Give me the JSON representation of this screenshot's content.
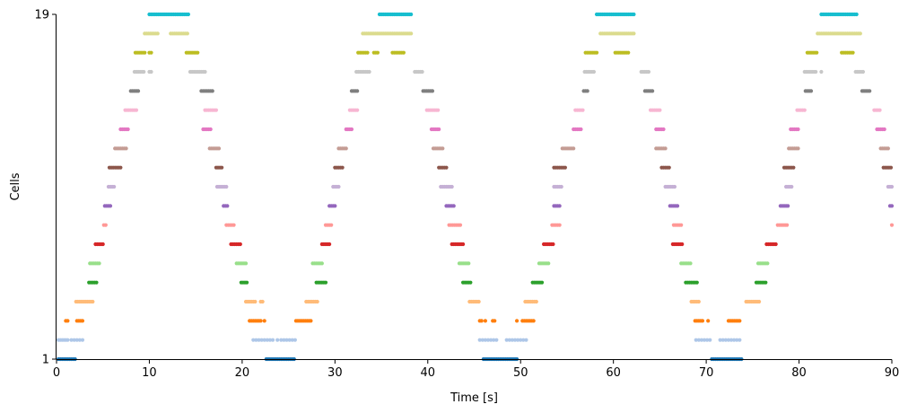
{
  "chart_data": {
    "type": "scatter",
    "title": "",
    "xlabel": "Time [s]",
    "ylabel": "Cells",
    "xlim": [
      0,
      90
    ],
    "ylim": [
      1,
      19
    ],
    "xticks": [
      "0",
      "10",
      "20",
      "30",
      "40",
      "50",
      "60",
      "70",
      "80",
      "90"
    ],
    "yticks": [
      "1",
      "19"
    ],
    "grid": false,
    "legend": "none",
    "cell_colors": [
      "#1f77b4",
      "#aec7e8",
      "#ff7f0e",
      "#ffbb78",
      "#2ca02c",
      "#98df8a",
      "#d62728",
      "#ff9896",
      "#9467bd",
      "#c5b0d5",
      "#8c564b",
      "#c49c94",
      "#e377c2",
      "#f7b6d2",
      "#7f7f7f",
      "#c7c7c7",
      "#bcbd22",
      "#dbdb8d",
      "#17becf"
    ],
    "firing_times_s": [
      [
        0.2,
        0.4,
        0.6,
        0.8,
        1.0,
        1.2,
        1.4,
        1.6,
        1.8,
        2.0,
        22.6,
        22.8,
        23.0,
        23.2,
        23.4,
        23.6,
        23.8,
        24.0,
        24.2,
        24.4,
        24.6,
        24.8,
        25.0,
        25.2,
        25.4,
        25.6,
        46.0,
        46.2,
        46.4,
        46.6,
        46.8,
        47.0,
        47.2,
        47.4,
        47.6,
        47.8,
        48.0,
        48.2,
        48.4,
        48.6,
        48.8,
        49.0,
        49.2,
        49.4,
        49.6,
        70.6,
        70.8,
        71.0,
        71.2,
        71.4,
        71.6,
        71.8,
        72.0,
        72.2,
        72.4,
        72.6,
        72.8,
        73.0,
        73.2,
        73.4,
        73.6,
        73.8
      ],
      [
        0.2,
        0.4,
        0.6,
        0.8,
        1.0,
        1.2,
        1.6,
        1.9,
        2.2,
        2.5,
        2.8,
        21.2,
        21.5,
        21.8,
        22.1,
        22.4,
        22.7,
        23.0,
        23.3,
        23.8,
        24.2,
        24.5,
        24.8,
        25.1,
        25.4,
        25.7,
        45.6,
        45.9,
        46.2,
        46.5,
        46.8,
        47.1,
        47.4,
        48.5,
        48.8,
        49.1,
        49.4,
        49.7,
        50.0,
        50.3,
        50.6,
        68.9,
        69.2,
        69.5,
        69.8,
        70.1,
        70.4,
        71.5,
        71.8,
        72.1,
        72.4,
        72.7,
        73.0,
        73.3,
        73.6
      ],
      [
        1.0,
        1.2,
        2.2,
        2.4,
        2.6,
        2.8,
        20.8,
        21.0,
        21.2,
        21.4,
        21.6,
        21.8,
        22.0,
        22.4,
        25.8,
        26.0,
        26.2,
        26.4,
        26.6,
        26.8,
        27.0,
        27.2,
        27.4,
        45.6,
        45.8,
        46.2,
        47.0,
        47.2,
        49.6,
        50.2,
        50.4,
        50.6,
        50.8,
        51.0,
        51.2,
        51.4,
        68.8,
        69.0,
        69.2,
        69.4,
        69.6,
        70.2,
        72.4,
        72.6,
        72.8,
        73.0,
        73.2,
        73.4,
        73.6
      ],
      [
        2.1,
        2.3,
        2.5,
        2.7,
        2.9,
        3.1,
        3.3,
        3.5,
        3.7,
        3.9,
        20.4,
        20.6,
        20.8,
        21.0,
        21.2,
        21.4,
        22.0,
        22.2,
        26.9,
        27.1,
        27.3,
        27.5,
        27.7,
        27.9,
        28.1,
        44.5,
        44.7,
        44.9,
        45.1,
        45.3,
        45.5,
        50.5,
        50.7,
        50.9,
        51.1,
        51.3,
        51.5,
        51.7,
        68.4,
        68.6,
        68.8,
        69.0,
        69.2,
        74.3,
        74.5,
        74.7,
        74.9,
        75.1,
        75.3,
        75.5,
        75.7
      ],
      [
        3.5,
        3.7,
        3.9,
        4.1,
        4.3,
        19.9,
        20.1,
        20.3,
        20.5,
        28.0,
        28.2,
        28.4,
        28.6,
        28.8,
        29.0,
        43.8,
        44.0,
        44.2,
        44.4,
        44.6,
        51.3,
        51.5,
        51.7,
        51.9,
        52.1,
        52.3,
        67.8,
        68.0,
        68.2,
        68.4,
        68.6,
        68.8,
        69.0,
        75.4,
        75.6,
        75.8,
        76.0,
        76.2,
        76.4
      ],
      [
        3.6,
        3.8,
        4.0,
        4.2,
        4.4,
        4.6,
        19.4,
        19.6,
        19.8,
        20.0,
        20.2,
        20.4,
        27.6,
        27.8,
        28.0,
        28.2,
        28.4,
        28.6,
        43.4,
        43.6,
        43.8,
        44.0,
        44.2,
        44.4,
        52.0,
        52.2,
        52.4,
        52.6,
        52.8,
        53.0,
        67.3,
        67.5,
        67.7,
        67.9,
        68.1,
        68.3,
        75.6,
        75.8,
        76.0,
        76.2,
        76.4,
        76.6
      ],
      [
        4.2,
        4.4,
        4.6,
        4.8,
        5.0,
        18.8,
        19.0,
        19.2,
        19.4,
        19.6,
        19.8,
        28.6,
        28.8,
        29.0,
        29.2,
        29.4,
        42.6,
        42.8,
        43.0,
        43.2,
        43.4,
        43.6,
        43.8,
        52.5,
        52.7,
        52.9,
        53.1,
        53.3,
        53.5,
        66.4,
        66.6,
        66.8,
        67.0,
        67.2,
        67.4,
        76.5,
        76.7,
        76.9,
        77.1,
        77.3,
        77.5
      ],
      [
        5.1,
        5.3,
        18.3,
        18.5,
        18.7,
        18.9,
        19.1,
        29.0,
        29.2,
        29.4,
        29.6,
        42.3,
        42.5,
        42.7,
        42.9,
        43.1,
        43.3,
        43.5,
        53.4,
        53.6,
        53.8,
        54.0,
        54.2,
        66.5,
        66.7,
        66.9,
        67.1,
        67.3,
        77.7,
        77.9,
        78.1,
        78.3,
        78.5,
        78.7,
        90.0
      ],
      [
        5.2,
        5.4,
        5.6,
        5.8,
        18.0,
        18.2,
        18.4,
        29.4,
        29.6,
        29.8,
        30.0,
        42.0,
        42.2,
        42.4,
        42.6,
        42.8,
        53.6,
        53.8,
        54.0,
        54.2,
        66.1,
        66.3,
        66.5,
        66.7,
        66.9,
        78.0,
        78.2,
        78.4,
        78.6,
        78.8,
        89.8,
        90.0
      ],
      [
        5.6,
        5.8,
        6.0,
        6.2,
        17.3,
        17.5,
        17.7,
        17.9,
        18.1,
        18.3,
        29.8,
        30.0,
        30.2,
        30.4,
        41.4,
        41.6,
        41.8,
        42.0,
        42.2,
        42.4,
        42.6,
        53.6,
        53.8,
        54.0,
        54.2,
        54.4,
        65.6,
        65.8,
        66.0,
        66.2,
        66.4,
        66.6,
        78.6,
        78.8,
        79.0,
        79.2,
        89.6,
        89.8,
        90.0
      ],
      [
        5.7,
        5.9,
        6.1,
        6.3,
        6.5,
        6.7,
        6.9,
        17.2,
        17.4,
        17.6,
        17.8,
        30.0,
        30.2,
        30.4,
        30.6,
        30.8,
        41.2,
        41.4,
        41.6,
        41.8,
        42.0,
        53.6,
        53.8,
        54.0,
        54.2,
        54.4,
        54.6,
        54.8,
        65.2,
        65.4,
        65.6,
        65.8,
        66.0,
        78.4,
        78.6,
        78.8,
        79.0,
        79.2,
        79.4,
        89.1,
        89.3,
        89.5,
        89.7,
        89.9
      ],
      [
        6.3,
        6.5,
        6.7,
        6.9,
        7.1,
        7.3,
        7.5,
        16.5,
        16.7,
        16.9,
        17.1,
        17.3,
        17.5,
        30.4,
        30.6,
        30.8,
        31.0,
        31.2,
        40.6,
        40.8,
        41.0,
        41.2,
        41.4,
        41.6,
        54.5,
        54.7,
        54.9,
        55.1,
        55.3,
        55.5,
        55.7,
        64.6,
        64.8,
        65.0,
        65.2,
        65.4,
        65.6,
        78.9,
        79.1,
        79.3,
        79.5,
        79.7,
        79.9,
        88.8,
        89.0,
        89.2,
        89.4,
        89.6
      ],
      [
        6.9,
        7.1,
        7.3,
        7.5,
        7.7,
        15.8,
        16.0,
        16.2,
        16.4,
        16.6,
        31.2,
        31.4,
        31.6,
        31.8,
        40.4,
        40.6,
        40.8,
        41.0,
        41.2,
        55.7,
        55.9,
        56.1,
        56.3,
        56.5,
        64.6,
        64.8,
        65.0,
        65.2,
        65.4,
        79.1,
        79.3,
        79.5,
        79.7,
        79.9,
        88.4,
        88.6,
        88.8,
        89.0,
        89.2
      ],
      [
        7.4,
        7.6,
        7.8,
        8.0,
        8.2,
        8.4,
        8.6,
        16.0,
        16.2,
        16.4,
        16.6,
        16.8,
        17.0,
        17.2,
        31.6,
        31.8,
        32.0,
        32.2,
        32.4,
        39.9,
        40.1,
        40.3,
        40.5,
        40.7,
        40.9,
        41.1,
        55.9,
        56.1,
        56.3,
        56.5,
        56.7,
        64.0,
        64.2,
        64.4,
        64.6,
        64.8,
        65.0,
        79.8,
        80.0,
        80.2,
        80.4,
        80.6,
        88.1,
        88.3,
        88.5,
        88.7
      ],
      [
        8.0,
        8.2,
        8.4,
        8.6,
        8.8,
        15.6,
        15.8,
        16.0,
        16.2,
        16.4,
        16.6,
        16.8,
        31.8,
        32.0,
        32.2,
        32.4,
        39.5,
        39.7,
        39.9,
        40.1,
        40.3,
        40.5,
        56.8,
        57.0,
        57.2,
        63.4,
        63.6,
        63.8,
        64.0,
        64.2,
        80.7,
        80.9,
        81.1,
        81.3,
        86.8,
        87.0,
        87.2,
        87.4,
        87.6
      ],
      [
        8.4,
        8.6,
        8.8,
        9.0,
        9.2,
        9.4,
        10.0,
        10.2,
        14.4,
        14.6,
        14.8,
        15.0,
        15.2,
        15.4,
        15.6,
        15.8,
        16.0,
        32.3,
        32.5,
        32.7,
        32.9,
        33.1,
        33.3,
        33.5,
        33.7,
        38.6,
        38.8,
        39.0,
        39.2,
        39.4,
        56.9,
        57.1,
        57.3,
        57.5,
        57.7,
        57.9,
        63.0,
        63.2,
        63.4,
        63.6,
        63.8,
        80.6,
        80.8,
        81.0,
        81.2,
        81.4,
        81.6,
        81.8,
        82.4,
        86.1,
        86.3,
        86.5,
        86.7,
        86.9
      ],
      [
        8.5,
        8.7,
        8.9,
        9.1,
        9.3,
        9.5,
        10.0,
        10.2,
        14.0,
        14.2,
        14.4,
        14.6,
        14.8,
        15.0,
        15.2,
        32.5,
        32.7,
        32.9,
        33.1,
        33.3,
        33.5,
        34.2,
        34.4,
        34.6,
        36.2,
        36.4,
        36.6,
        36.8,
        37.0,
        37.2,
        37.4,
        57.0,
        57.2,
        57.4,
        57.6,
        57.8,
        58.0,
        58.2,
        60.2,
        60.4,
        60.6,
        60.8,
        61.0,
        61.2,
        61.4,
        61.6,
        80.9,
        81.1,
        81.3,
        81.5,
        81.7,
        81.9,
        84.6,
        84.8,
        85.0,
        85.2,
        85.4,
        85.6,
        85.8
      ],
      [
        9.5,
        9.7,
        9.9,
        10.1,
        10.3,
        10.5,
        10.7,
        10.9,
        12.3,
        12.5,
        12.7,
        12.9,
        13.1,
        13.3,
        13.5,
        13.7,
        13.9,
        14.1,
        33.0,
        33.2,
        33.4,
        33.6,
        33.8,
        34.0,
        34.2,
        34.4,
        34.6,
        34.8,
        35.0,
        35.2,
        35.4,
        35.6,
        35.8,
        36.0,
        36.2,
        36.4,
        36.6,
        36.8,
        37.0,
        37.2,
        37.4,
        37.6,
        37.8,
        38.0,
        38.2,
        58.6,
        58.8,
        59.0,
        59.2,
        59.4,
        59.6,
        59.8,
        60.0,
        60.2,
        60.4,
        60.6,
        60.8,
        61.0,
        61.2,
        61.4,
        61.6,
        61.8,
        62.0,
        62.2,
        82.0,
        82.2,
        82.4,
        82.6,
        82.8,
        83.0,
        83.2,
        83.4,
        83.6,
        83.8,
        84.0,
        84.2,
        84.4,
        84.6,
        84.8,
        85.0,
        85.2,
        85.4,
        85.6,
        85.8,
        86.0,
        86.2,
        86.4,
        86.6
      ],
      [
        10.0,
        10.2,
        10.4,
        10.6,
        10.8,
        11.0,
        11.2,
        11.4,
        11.6,
        11.8,
        12.0,
        12.2,
        12.4,
        12.6,
        12.8,
        13.0,
        13.2,
        13.4,
        13.6,
        13.8,
        14.0,
        14.2,
        34.8,
        35.0,
        35.2,
        35.4,
        35.6,
        35.8,
        36.0,
        36.2,
        36.4,
        36.6,
        36.8,
        37.0,
        37.2,
        37.4,
        37.6,
        37.8,
        38.0,
        38.2,
        58.2,
        58.4,
        58.6,
        58.8,
        59.0,
        59.2,
        59.4,
        59.6,
        59.8,
        60.0,
        60.2,
        60.4,
        60.6,
        60.8,
        61.0,
        61.2,
        61.4,
        61.6,
        61.8,
        62.0,
        62.2,
        82.4,
        82.6,
        82.8,
        83.0,
        83.2,
        83.4,
        83.6,
        83.8,
        84.0,
        84.2,
        84.4,
        84.6,
        84.8,
        85.0,
        85.2,
        85.4,
        85.6,
        85.8,
        86.0,
        86.2
      ]
    ]
  }
}
